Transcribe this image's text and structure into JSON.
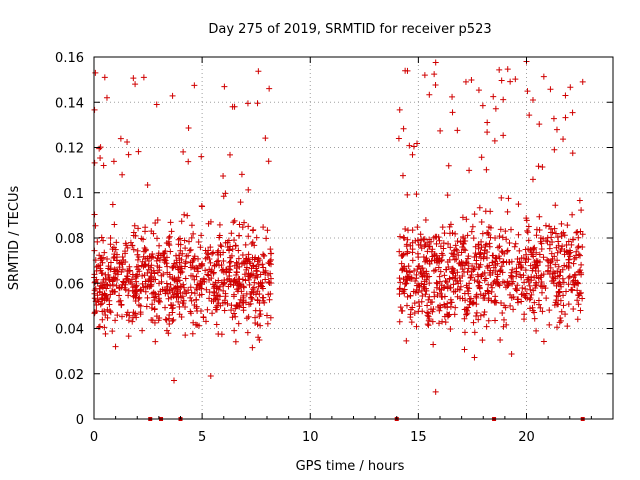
{
  "chart_data": {
    "type": "scatter",
    "title": "Day 275 of 2019, SRMTID for receiver p523",
    "xlabel": "GPS time / hours",
    "ylabel": "SRMTID / TECUs",
    "xlim": [
      0,
      24
    ],
    "ylim": [
      0,
      0.16
    ],
    "x_ticks": [
      0,
      5,
      10,
      15,
      20
    ],
    "x_tick_labels": [
      "0",
      "5",
      "10",
      "15",
      "20"
    ],
    "y_ticks": [
      0,
      0.02,
      0.04,
      0.06,
      0.08,
      0.1,
      0.12,
      0.14,
      0.16
    ],
    "y_tick_labels": [
      "0",
      "0.02",
      "0.04",
      "0.06",
      "0.08",
      "0.1",
      "0.12",
      "0.14",
      "0.16"
    ],
    "grid": true,
    "marker": "plus",
    "color": "#d00000",
    "segments": [
      {
        "x_start": 0.0,
        "x_end": 8.2,
        "y_center": 0.062,
        "y_spread": 0.02
      },
      {
        "x_start": 14.1,
        "x_end": 22.6,
        "y_center": 0.065,
        "y_spread": 0.022
      }
    ],
    "highlight_points": [
      {
        "x": 0.5,
        "y": 0.151
      },
      {
        "x": 0.6,
        "y": 0.142
      },
      {
        "x": 1.9,
        "y": 0.148
      },
      {
        "x": 2.9,
        "y": 0.139
      },
      {
        "x": 6.5,
        "y": 0.138
      },
      {
        "x": 8.1,
        "y": 0.146
      },
      {
        "x": 15.3,
        "y": 0.152
      },
      {
        "x": 17.2,
        "y": 0.149
      },
      {
        "x": 20.0,
        "y": 0.158
      },
      {
        "x": 22.6,
        "y": 0.149
      },
      {
        "x": 21.8,
        "y": 0.143
      },
      {
        "x": 20.3,
        "y": 0.141
      },
      {
        "x": 14.1,
        "y": 0.124
      },
      {
        "x": 3.7,
        "y": 0.017
      },
      {
        "x": 15.8,
        "y": 0.012
      },
      {
        "x": 5.4,
        "y": 0.019
      }
    ],
    "zero_line_markers": [
      2.6,
      3.1,
      4.0,
      14.0,
      18.5,
      22.6
    ]
  }
}
